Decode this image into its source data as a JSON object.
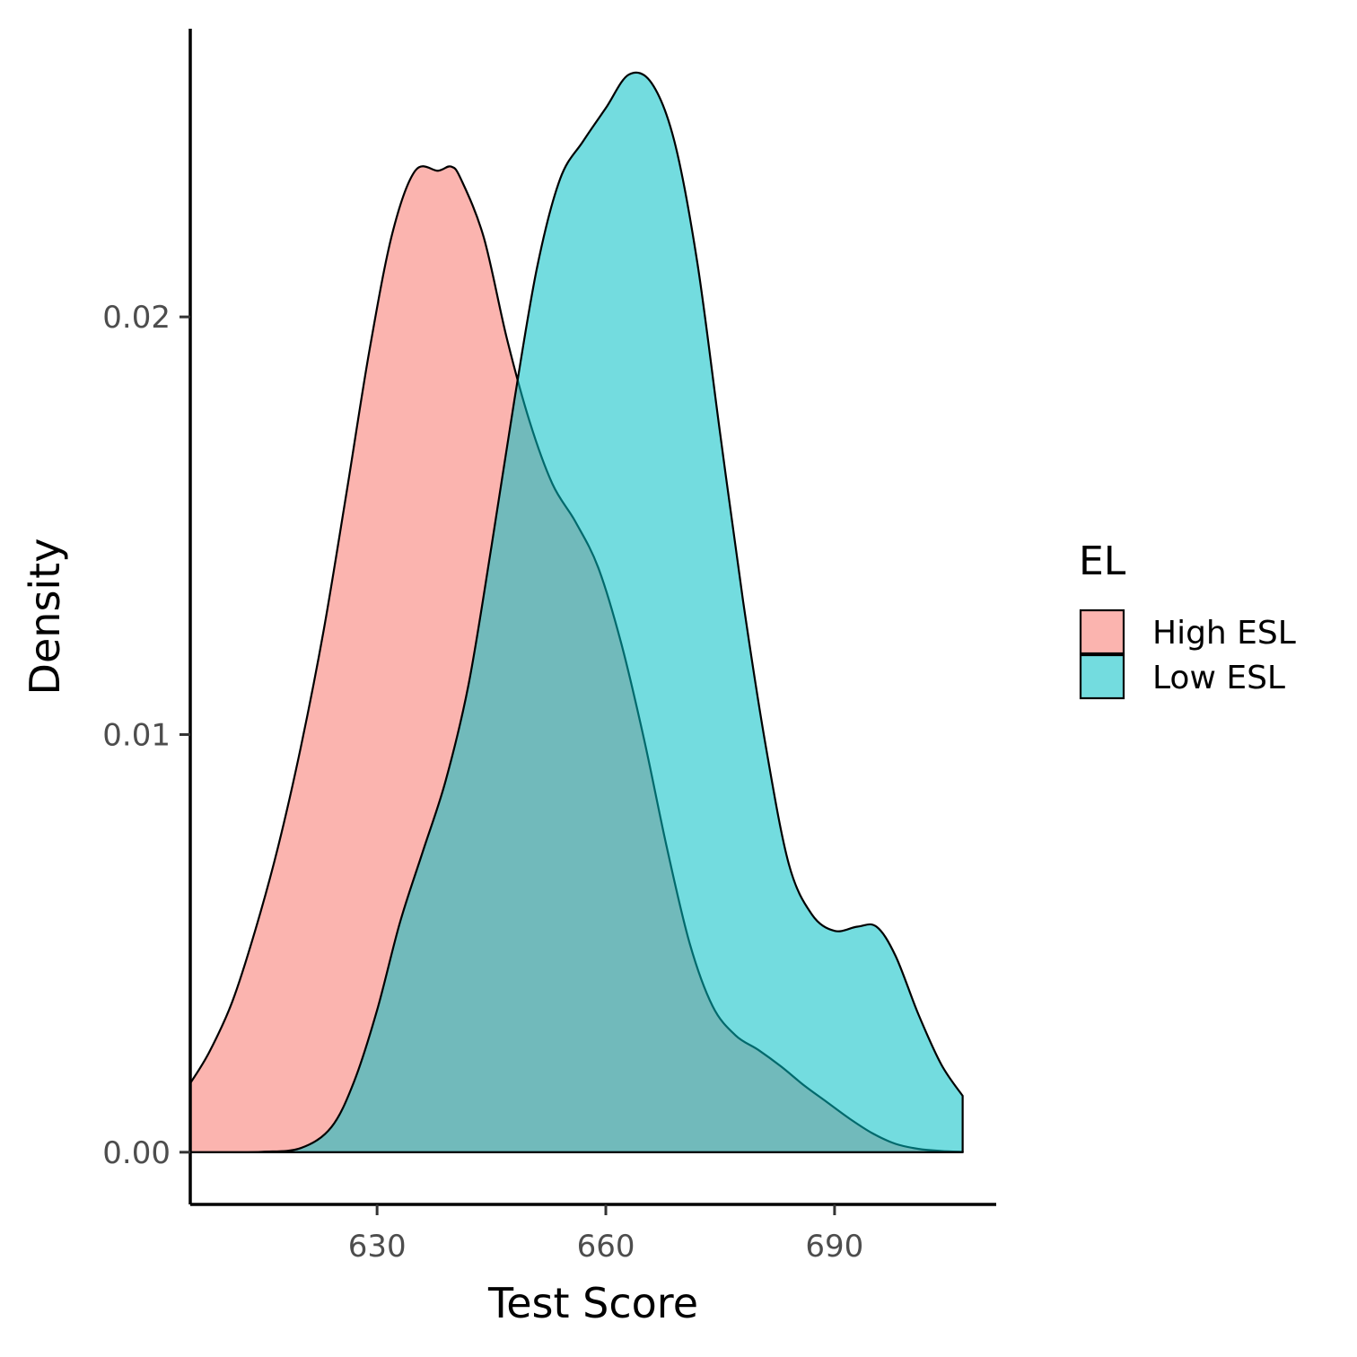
{
  "chart_data": {
    "type": "area",
    "subtype": "density",
    "title": "",
    "xlabel": "Test Score",
    "ylabel": "Density",
    "xlim": [
      605.5,
      711.2
    ],
    "ylim": [
      -0.00125,
      0.0269
    ],
    "x_ticks": [
      630,
      660,
      690
    ],
    "y_ticks": [
      0.0,
      0.01,
      0.02
    ],
    "y_tick_labels": [
      "0.00",
      "0.01",
      "0.02"
    ],
    "grid": false,
    "legend": {
      "title": "EL",
      "placement": "right"
    },
    "fill_opacity": 0.55,
    "series": [
      {
        "name": "High ESL",
        "color": "#F8766D",
        "x": [
          605.5,
          608,
          611,
          614,
          617,
          620,
          623,
          626,
          629,
          632,
          635,
          638,
          639.7,
          641,
          644,
          647,
          650,
          653,
          656,
          659,
          662,
          665,
          668,
          671,
          674,
          677,
          680,
          683,
          686,
          689,
          692,
          695,
          698,
          701,
          704,
          706.8
        ],
        "y": [
          0.00165,
          0.0024,
          0.0036,
          0.0053,
          0.0073,
          0.0097,
          0.0125,
          0.0158,
          0.0192,
          0.022,
          0.0235,
          0.0235,
          0.0236,
          0.0233,
          0.0219,
          0.0195,
          0.0175,
          0.016,
          0.0151,
          0.014,
          0.0122,
          0.0099,
          0.0073,
          0.005,
          0.0035,
          0.0028,
          0.00245,
          0.00205,
          0.0016,
          0.0012,
          0.0008,
          0.00045,
          0.0002,
          8e-05,
          3e-05,
          1e-05
        ]
      },
      {
        "name": "Low ESL",
        "color": "#00BFC4",
        "x": [
          605.5,
          610,
          615,
          620,
          624,
          627,
          630,
          633,
          636,
          639,
          642,
          645,
          648,
          651,
          654,
          657,
          660,
          663,
          666,
          669,
          672,
          675,
          678,
          681,
          684,
          687,
          690,
          693,
          695.5,
          698,
          701,
          704,
          706.8
        ],
        "y": [
          0.0,
          0.0,
          1e-05,
          0.0001,
          0.0006,
          0.0017,
          0.0034,
          0.0055,
          0.0072,
          0.0089,
          0.0112,
          0.0145,
          0.018,
          0.0212,
          0.0233,
          0.0242,
          0.025,
          0.0258,
          0.0256,
          0.0242,
          0.0213,
          0.0172,
          0.0132,
          0.0097,
          0.0069,
          0.0057,
          0.0053,
          0.0054,
          0.0054,
          0.0047,
          0.0033,
          0.0021,
          0.00135
        ]
      }
    ]
  }
}
